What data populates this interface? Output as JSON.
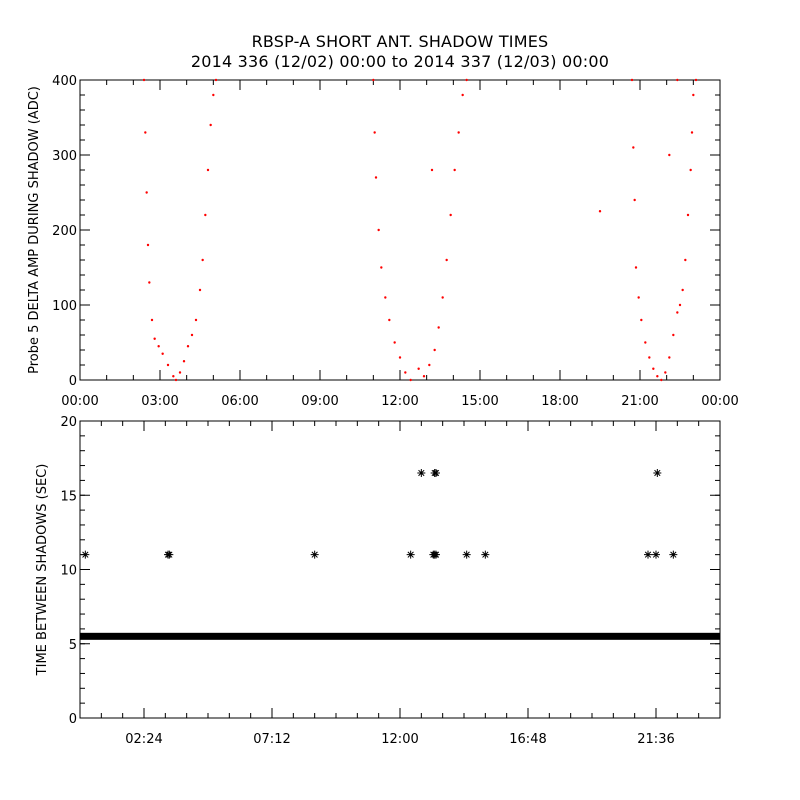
{
  "title": "RBSP-A SHORT ANT. SHADOW TIMES",
  "subtitle": "2014 336 (12/02) 00:00 to 2014 337 (12/03) 00:00",
  "chart_data": [
    {
      "type": "scatter",
      "ylabel": "Probe 5 DELTA AMP DURING SHADOW (ADC)",
      "xlabel": "",
      "xlim_hours": [
        0,
        24
      ],
      "ylim": [
        0,
        400
      ],
      "x_tick_labels": [
        "00:00",
        "03:00",
        "06:00",
        "09:00",
        "12:00",
        "15:00",
        "18:00",
        "21:00",
        "00:00"
      ],
      "y_tick_labels": [
        "0",
        "100",
        "200",
        "300",
        "400"
      ],
      "marker_color": "#ff0000",
      "series": [
        {
          "points": [
            [
              2.4,
              400
            ],
            [
              2.45,
              330
            ],
            [
              2.5,
              250
            ],
            [
              2.55,
              180
            ],
            [
              2.6,
              130
            ],
            [
              2.7,
              80
            ],
            [
              2.8,
              55
            ],
            [
              2.95,
              45
            ],
            [
              3.1,
              35
            ],
            [
              3.3,
              20
            ],
            [
              3.5,
              5
            ],
            [
              3.6,
              0
            ],
            [
              3.75,
              10
            ],
            [
              3.9,
              25
            ],
            [
              4.05,
              45
            ],
            [
              4.2,
              60
            ],
            [
              4.35,
              80
            ],
            [
              4.5,
              120
            ],
            [
              4.6,
              160
            ],
            [
              4.7,
              220
            ],
            [
              4.8,
              280
            ],
            [
              4.9,
              340
            ],
            [
              5.0,
              380
            ],
            [
              5.1,
              400
            ],
            [
              11.0,
              400
            ],
            [
              11.05,
              330
            ],
            [
              11.1,
              270
            ],
            [
              11.2,
              200
            ],
            [
              11.3,
              150
            ],
            [
              11.45,
              110
            ],
            [
              11.6,
              80
            ],
            [
              11.8,
              50
            ],
            [
              12.0,
              30
            ],
            [
              12.2,
              10
            ],
            [
              12.4,
              0
            ],
            [
              12.7,
              15
            ],
            [
              12.9,
              5
            ],
            [
              13.1,
              20
            ],
            [
              13.3,
              40
            ],
            [
              13.45,
              70
            ],
            [
              13.6,
              110
            ],
            [
              13.75,
              160
            ],
            [
              13.9,
              220
            ],
            [
              14.05,
              280
            ],
            [
              14.2,
              330
            ],
            [
              14.35,
              380
            ],
            [
              14.5,
              400
            ],
            [
              13.2,
              280
            ],
            [
              19.5,
              225
            ],
            [
              20.7,
              400
            ],
            [
              20.75,
              310
            ],
            [
              20.8,
              240
            ],
            [
              20.85,
              150
            ],
            [
              20.95,
              110
            ],
            [
              21.05,
              80
            ],
            [
              21.2,
              50
            ],
            [
              21.35,
              30
            ],
            [
              21.5,
              15
            ],
            [
              21.65,
              5
            ],
            [
              21.8,
              0
            ],
            [
              21.95,
              10
            ],
            [
              22.1,
              30
            ],
            [
              22.25,
              60
            ],
            [
              22.4,
              90
            ],
            [
              22.5,
              100
            ],
            [
              22.6,
              120
            ],
            [
              22.7,
              160
            ],
            [
              22.8,
              220
            ],
            [
              22.9,
              280
            ],
            [
              22.95,
              330
            ],
            [
              23.0,
              380
            ],
            [
              23.1,
              400
            ],
            [
              22.1,
              300
            ],
            [
              22.4,
              400
            ]
          ]
        }
      ]
    },
    {
      "type": "scatter",
      "ylabel": "TIME BETWEEN SHADOWS (SEC)",
      "xlabel": "",
      "xlim_hours": [
        0,
        24
      ],
      "ylim": [
        0,
        20
      ],
      "x_tick_labels": [
        "02:24",
        "07:12",
        "12:00",
        "16:48",
        "21:36"
      ],
      "y_tick_labels": [
        "0",
        "5",
        "10",
        "15",
        "20"
      ],
      "marker_color": "#000000",
      "baseline_value": 5.5,
      "baseline_range_hours": [
        0,
        24
      ],
      "series": [
        {
          "points": [
            [
              0.2,
              11
            ],
            [
              3.3,
              11
            ],
            [
              3.35,
              11
            ],
            [
              8.8,
              11
            ],
            [
              12.4,
              11
            ],
            [
              12.8,
              16.5
            ],
            [
              13.3,
              16.5
            ],
            [
              13.35,
              16.5
            ],
            [
              13.25,
              11
            ],
            [
              13.3,
              11
            ],
            [
              13.35,
              11
            ],
            [
              14.5,
              11
            ],
            [
              15.2,
              11
            ],
            [
              21.3,
              11
            ],
            [
              21.6,
              11
            ],
            [
              21.65,
              16.5
            ],
            [
              22.25,
              11
            ]
          ]
        }
      ]
    }
  ]
}
